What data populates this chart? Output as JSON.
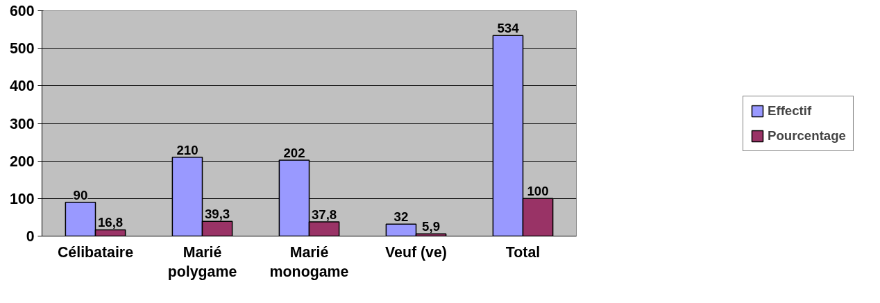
{
  "chart_data": {
    "type": "bar",
    "categories": [
      "Célibataire",
      "Marié\npolygame",
      "Marié\nmonogame",
      "Veuf (ve)",
      "Total"
    ],
    "series": [
      {
        "name": "Effectif",
        "color": "#9999ff",
        "values": [
          90,
          210,
          202,
          32,
          534
        ],
        "value_labels": [
          "90",
          "210",
          "202",
          "32",
          "534"
        ]
      },
      {
        "name": "Pourcentage",
        "color": "#993366",
        "values": [
          16.8,
          39.3,
          37.8,
          5.9,
          100
        ],
        "value_labels": [
          "16,8",
          "39,3",
          "37,8",
          "5,9",
          "100"
        ]
      }
    ],
    "ylim": [
      0,
      600
    ],
    "yticks": [
      0,
      100,
      200,
      300,
      400,
      500,
      600
    ],
    "grid": "y",
    "legend": "right"
  }
}
